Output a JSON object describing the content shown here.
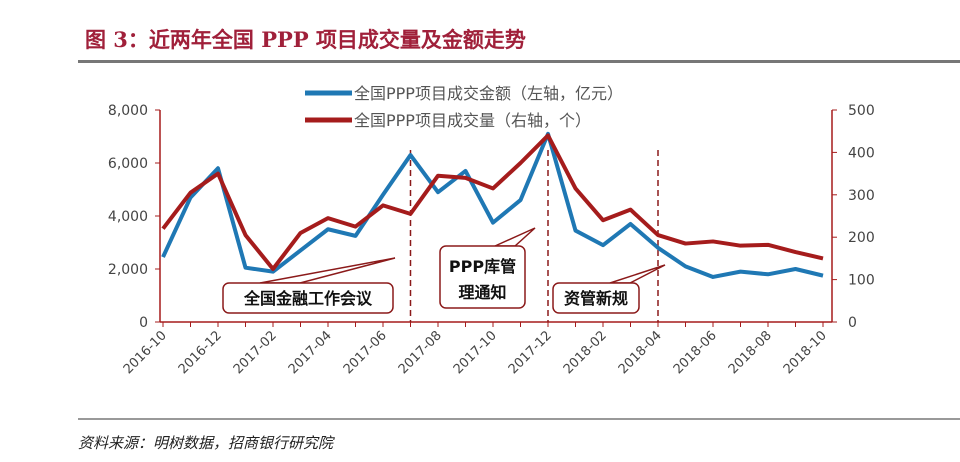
{
  "title": "图 3：近两年全国 PPP 项目成交量及金额走势",
  "source": "资料来源：明树数据，招商银行研究院",
  "chart_data": {
    "type": "line",
    "x": [
      "2016-10",
      "2016-11",
      "2016-12",
      "2017-01",
      "2017-02",
      "2017-03",
      "2017-04",
      "2017-05",
      "2017-06",
      "2017-07",
      "2017-08",
      "2017-09",
      "2017-10",
      "2017-11",
      "2017-12",
      "2018-01",
      "2018-02",
      "2018-03",
      "2018-04",
      "2018-05",
      "2018-06",
      "2018-07",
      "2018-08",
      "2018-09",
      "2018-10"
    ],
    "xtick_labels": [
      "2016-10",
      "2016-12",
      "2017-02",
      "2017-04",
      "2017-06",
      "2017-08",
      "2017-10",
      "2017-12",
      "2018-02",
      "2018-04",
      "2018-06",
      "2018-08",
      "2018-10"
    ],
    "left_axis": {
      "ylim": [
        0,
        8000
      ],
      "ticks": [
        "0",
        "2,000",
        "4,000",
        "6,000",
        "8,000"
      ]
    },
    "right_axis": {
      "ylim": [
        0,
        500
      ],
      "ticks": [
        "0",
        "100",
        "200",
        "300",
        "400",
        "500"
      ]
    },
    "series": [
      {
        "name": "全国PPP项目成交金额（左轴，亿元）",
        "axis": "left",
        "color": "#1f78b4",
        "values": [
          2450,
          4700,
          5800,
          2050,
          1900,
          2700,
          3500,
          3250,
          4800,
          6300,
          4900,
          5700,
          3750,
          4600,
          7100,
          3450,
          2900,
          3700,
          2800,
          2100,
          1700,
          1900,
          1800,
          2000,
          1750
        ]
      },
      {
        "name": "全国PPP项目成交量（右轴，个）",
        "axis": "right",
        "color": "#a51c1c",
        "values": [
          220,
          305,
          350,
          205,
          125,
          210,
          245,
          225,
          275,
          255,
          345,
          340,
          315,
          375,
          440,
          315,
          240,
          265,
          205,
          185,
          190,
          180,
          182,
          165,
          150
        ]
      }
    ],
    "annotations": [
      {
        "text": "全国金融工作会议",
        "x": "2017-07"
      },
      {
        "text": "PPP库管理通知",
        "x": "2017-12"
      },
      {
        "text": "资管新规",
        "x": "2018-04"
      }
    ],
    "legend": "top-center",
    "grid": false
  }
}
